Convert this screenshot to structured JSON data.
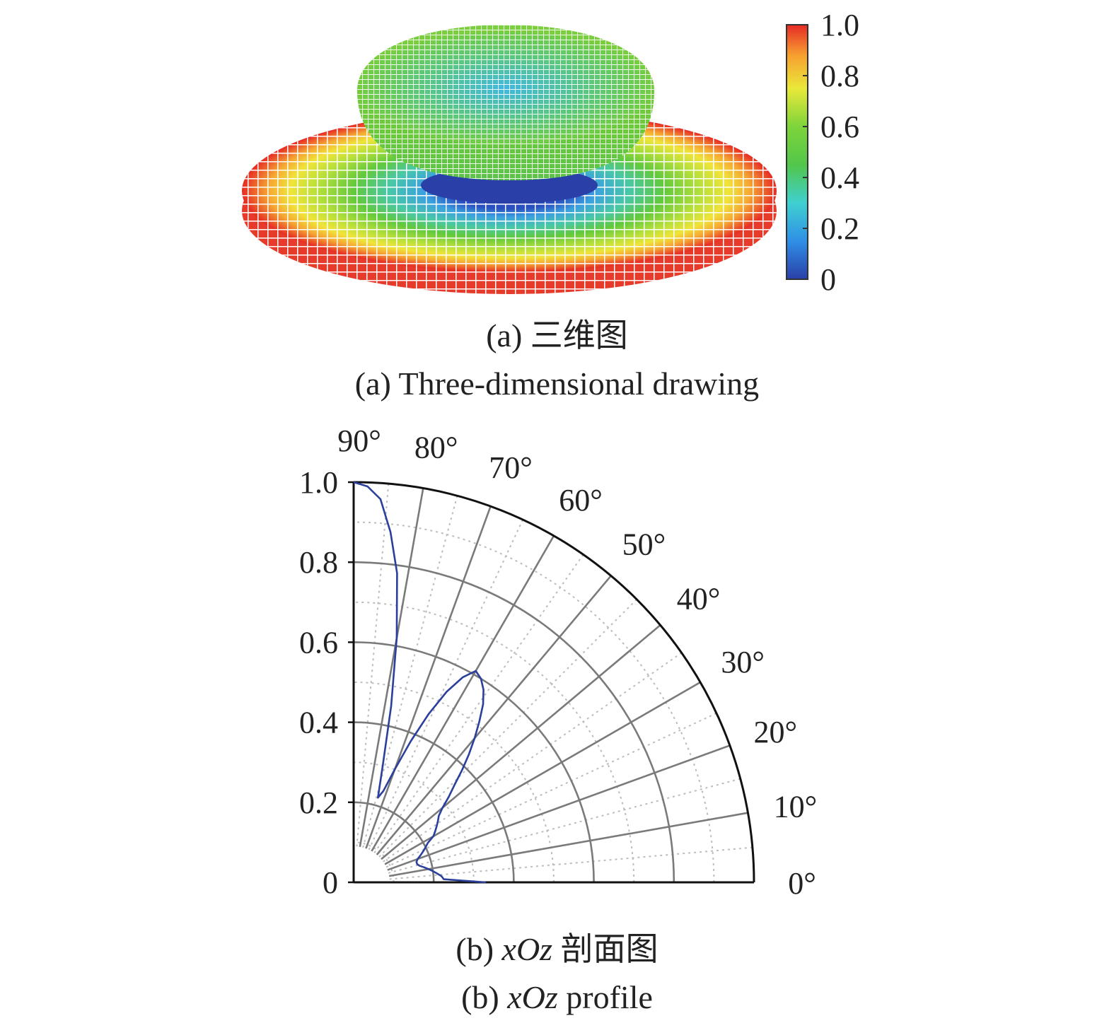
{
  "figure_a": {
    "caption_cn": "(a) 三维图",
    "caption_en": "(a) Three-dimensional drawing"
  },
  "figure_b": {
    "caption_cn_prefix": "(b) ",
    "caption_cn_italic": "xOz",
    "caption_cn_suffix": " 剖面图",
    "caption_en_prefix": "(b) ",
    "caption_en_italic": "xOz",
    "caption_en_suffix": " profile"
  },
  "chart_data": [
    {
      "type": "heatmap",
      "title": "",
      "colorbar": {
        "ticks": [
          "0",
          "0.2",
          "0.4",
          "0.6",
          "0.8",
          "1.0"
        ],
        "range": [
          0,
          1.0
        ],
        "colors": [
          "#2a3fa8",
          "#2f8fe6",
          "#3fd0d0",
          "#5ec93e",
          "#b6e23a",
          "#f2e83a",
          "#f7a030",
          "#e62a25"
        ]
      }
    },
    {
      "type": "line",
      "title": "",
      "radial_ticks": [
        "0",
        "0.2",
        "0.4",
        "0.6",
        "0.8",
        "1.0"
      ],
      "angle_ticks": [
        "0°",
        "10°",
        "20°",
        "30°",
        "40°",
        "50°",
        "60°",
        "70°",
        "80°",
        "90°"
      ],
      "rlim": [
        0,
        1.0
      ],
      "theta_range_deg": [
        0,
        90
      ],
      "grid": true,
      "series": [
        {
          "color": "#2b3f9c",
          "theta_deg": [
            90,
            88,
            86,
            84,
            82,
            80,
            78,
            76,
            74,
            72,
            70,
            68,
            66,
            64,
            62,
            60,
            58,
            56,
            54,
            52,
            50,
            48,
            46,
            44,
            42,
            40,
            38,
            36,
            34,
            32,
            30,
            28,
            26,
            24,
            22,
            20,
            18,
            16,
            14,
            12,
            10,
            8,
            6,
            4,
            2,
            0
          ],
          "r": [
            1.0,
            0.99,
            0.96,
            0.88,
            0.78,
            0.62,
            0.45,
            0.3,
            0.22,
            0.24,
            0.3,
            0.38,
            0.46,
            0.53,
            0.58,
            0.61,
            0.6,
            0.58,
            0.55,
            0.51,
            0.47,
            0.43,
            0.39,
            0.35,
            0.32,
            0.29,
            0.27,
            0.26,
            0.25,
            0.24,
            0.23,
            0.21,
            0.2,
            0.19,
            0.18,
            0.17,
            0.165,
            0.165,
            0.17,
            0.18,
            0.19,
            0.2,
            0.21,
            0.22,
            0.225,
            0.33
          ]
        }
      ]
    }
  ]
}
